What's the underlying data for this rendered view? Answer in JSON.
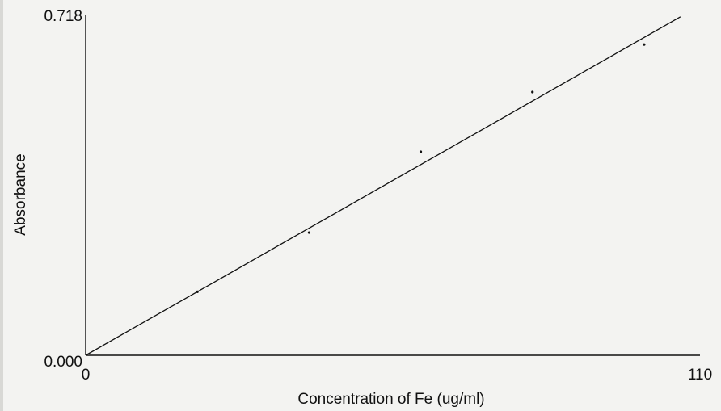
{
  "chart_data": {
    "type": "scatter",
    "title": "",
    "xlabel": "Concentration of Fe (ug/ml)",
    "ylabel": "Absorbance",
    "xlim": [
      0,
      110
    ],
    "ylim": [
      0,
      0.718
    ],
    "x_tick_labels": [
      "0",
      "110"
    ],
    "y_tick_labels": [
      "0.000",
      "0.718"
    ],
    "points": [
      {
        "x": 20,
        "y": 0.135
      },
      {
        "x": 40,
        "y": 0.261
      },
      {
        "x": 60,
        "y": 0.433
      },
      {
        "x": 80,
        "y": 0.56
      },
      {
        "x": 100,
        "y": 0.661
      }
    ],
    "fit_line": {
      "x": [
        0,
        106.5
      ],
      "y": [
        0,
        0.72
      ]
    },
    "grid": false,
    "legend": "none"
  }
}
